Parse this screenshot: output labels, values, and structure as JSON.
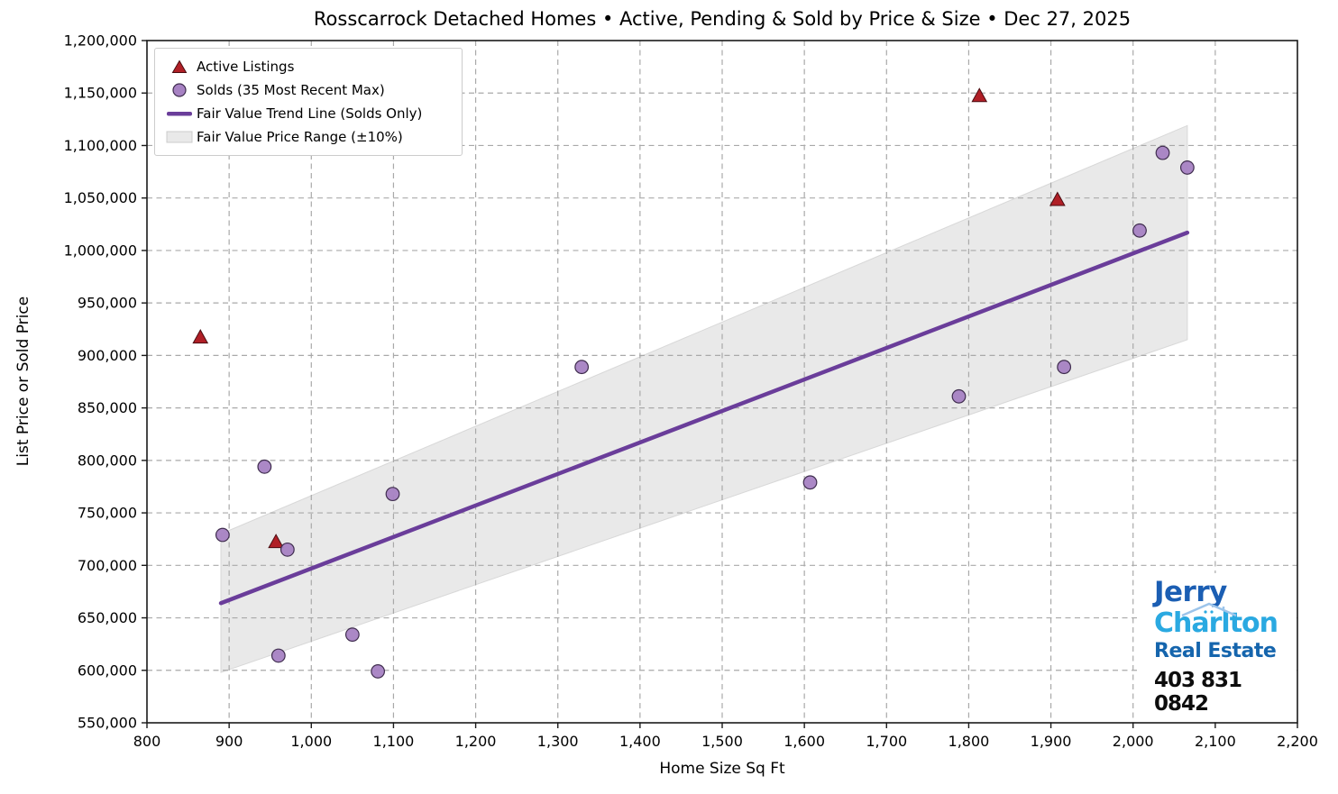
{
  "title": "Rosscarrock Detached Homes • Active, Pending & Sold by Price & Size • Dec 27, 2025",
  "chart_data": {
    "type": "scatter",
    "title": "Rosscarrock Detached Homes • Active, Pending & Sold by Price & Size • Dec 27, 2025",
    "xlabel": "Home Size Sq Ft",
    "ylabel": "List Price or Sold Price",
    "xlim": [
      800,
      2200
    ],
    "ylim": [
      550000,
      1200000
    ],
    "grid": true,
    "legend_position": "upper-left",
    "x_ticks": [
      800,
      900,
      1000,
      1100,
      1200,
      1300,
      1400,
      1500,
      1600,
      1700,
      1800,
      1900,
      2000,
      2100,
      2200
    ],
    "x_tick_labels": [
      "800",
      "900",
      "1,000",
      "1,100",
      "1,200",
      "1,300",
      "1,400",
      "1,500",
      "1,600",
      "1,700",
      "1,800",
      "1,900",
      "2,000",
      "2,100",
      "2,200"
    ],
    "y_ticks": [
      550000,
      600000,
      650000,
      700000,
      750000,
      800000,
      850000,
      900000,
      950000,
      1000000,
      1050000,
      1100000,
      1150000,
      1200000
    ],
    "y_tick_labels": [
      "550,000",
      "600,000",
      "650,000",
      "700,000",
      "750,000",
      "800,000",
      "850,000",
      "900,000",
      "950,000",
      "1,000,000",
      "1,050,000",
      "1,100,000",
      "1,150,000",
      "1,200,000"
    ],
    "series": [
      {
        "name": "Active Listings",
        "kind": "scatter",
        "marker": "triangle",
        "fill": "#b01f26",
        "edge": "#4a0d12",
        "points": [
          [
            865,
            917000
          ],
          [
            957,
            722000
          ],
          [
            1813,
            1147000
          ],
          [
            1908,
            1048000
          ]
        ]
      },
      {
        "name": "Solds (35 Most Recent Max)",
        "kind": "scatter",
        "marker": "circle",
        "fill": "#a782c3",
        "edge": "#3f2d4e",
        "points": [
          [
            892,
            729000
          ],
          [
            943,
            794000
          ],
          [
            960,
            614000
          ],
          [
            971,
            715000
          ],
          [
            1050,
            634000
          ],
          [
            1081,
            599000
          ],
          [
            1099,
            768000
          ],
          [
            1329,
            889000
          ],
          [
            1607,
            779000
          ],
          [
            1788,
            861000
          ],
          [
            1916,
            889000
          ],
          [
            2008,
            1019000
          ],
          [
            2036,
            1093000
          ],
          [
            2066,
            1079000
          ]
        ]
      },
      {
        "name": "Fair Value Trend Line (Solds Only)",
        "kind": "line",
        "color": "#6a3d9a",
        "points": [
          [
            890,
            664000
          ],
          [
            2066,
            1017000
          ]
        ]
      },
      {
        "name": "Fair Value Price Range (±10%)",
        "kind": "band",
        "fill": "#e9e9e9",
        "edge": "#d8d8d8",
        "top": [
          [
            890,
            730000
          ],
          [
            2066,
            1119000
          ]
        ],
        "bottom": [
          [
            890,
            598000
          ],
          [
            2066,
            915000
          ]
        ]
      }
    ]
  },
  "logo": {
    "name_top": "Jerry",
    "name_bottom": "Charlton",
    "tagline": "Real Estate",
    "phone": "403 831 0842",
    "colors": {
      "name_top": "#1b5eb3",
      "name_bottom": "#2aa9e1",
      "tagline": "#1565ad",
      "phone": "#0d0d0d",
      "roof": "#9cc4ea"
    }
  }
}
